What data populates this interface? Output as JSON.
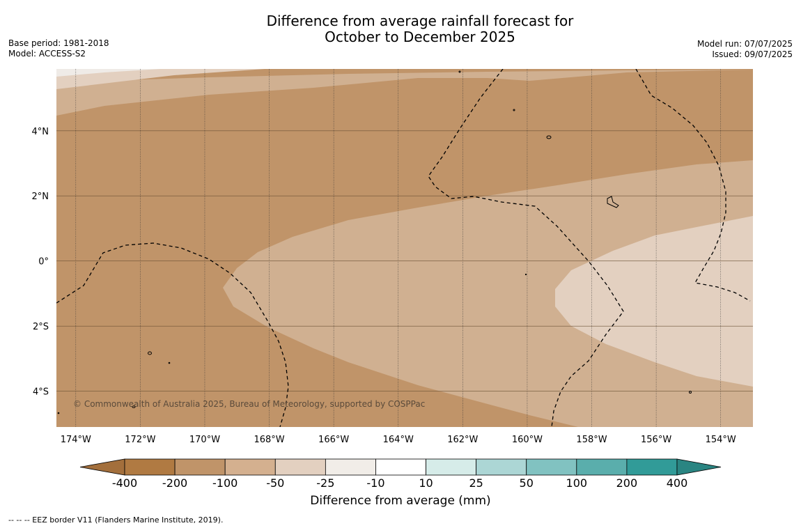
{
  "title_lines": [
    "Difference from average rainfall forecast for",
    "October to December 2025"
  ],
  "meta_left": [
    "Base period: 1981-2018",
    "Model: ACCESS-S2"
  ],
  "meta_right": [
    "Model run: 07/07/2025",
    "Issued: 09/07/2025"
  ],
  "map": {
    "lon_labels": [
      "174°W",
      "172°W",
      "170°W",
      "168°W",
      "166°W",
      "164°W",
      "162°W",
      "160°W",
      "158°W",
      "156°W",
      "154°W"
    ],
    "lat_labels": [
      "4°N",
      "2°N",
      "0°",
      "2°S",
      "4°S"
    ],
    "lon_range": [
      -174.6,
      -153.0
    ],
    "lat_range": [
      -5.1,
      5.9
    ],
    "copyright": "© Commonwealth of Australia 2025, Bureau of Meteorology, supported by COSPPac",
    "colors": {
      "class_neg200": "#c09469",
      "class_neg100": "#d0b091",
      "class_neg50": "#e3d0c0",
      "class_neg25": "#efebe7",
      "eez_line": "#000000"
    }
  },
  "colorbar": {
    "label": "Difference from average (mm)",
    "ticks": [
      "-400",
      "-200",
      "-100",
      "-50",
      "-25",
      "-10",
      "10",
      "25",
      "50",
      "100",
      "200",
      "400"
    ],
    "colors": [
      "#a36f3c",
      "#b07a42",
      "#c09469",
      "#d4b08f",
      "#e3d0c0",
      "#f1ede8",
      "#ffffff",
      "#d6ece9",
      "#acd6d5",
      "#81c2c1",
      "#5aaeac",
      "#319b98",
      "#2a8582"
    ]
  },
  "footnote": "--  --  -- EEZ border V11 (Flanders Marine Institute, 2019)."
}
